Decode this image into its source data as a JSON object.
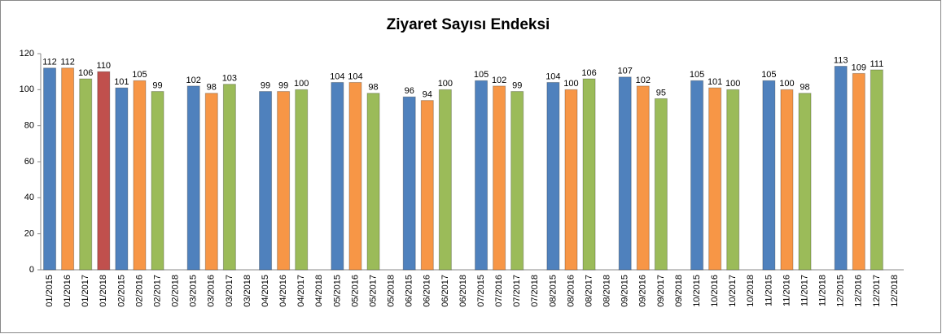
{
  "chart_data": {
    "type": "bar",
    "title": "Ziyaret Sayısı Endeksi",
    "categories": [
      "01/2015",
      "01/2016",
      "01/2017",
      "01/2018",
      "02/2015",
      "02/2016",
      "02/2017",
      "02/2018",
      "03/2015",
      "03/2016",
      "03/2017",
      "03/2018",
      "04/2015",
      "04/2016",
      "04/2017",
      "04/2018",
      "05/2015",
      "05/2016",
      "05/2017",
      "05/2018",
      "06/2015",
      "06/2016",
      "06/2017",
      "06/2018",
      "07/2015",
      "07/2016",
      "07/2017",
      "07/2018",
      "08/2015",
      "08/2016",
      "08/2017",
      "08/2018",
      "09/2015",
      "09/2016",
      "09/2017",
      "09/2018",
      "10/2015",
      "10/2016",
      "10/2017",
      "10/2018",
      "11/2015",
      "11/2016",
      "11/2017",
      "11/2018",
      "12/2015",
      "12/2016",
      "12/2017",
      "12/2018"
    ],
    "values": [
      112,
      112,
      106,
      110,
      101,
      105,
      99,
      null,
      102,
      98,
      103,
      null,
      99,
      99,
      100,
      null,
      104,
      104,
      98,
      null,
      96,
      94,
      100,
      null,
      105,
      102,
      99,
      null,
      104,
      100,
      106,
      null,
      107,
      102,
      95,
      null,
      105,
      101,
      100,
      null,
      105,
      100,
      98,
      null,
      113,
      109,
      111,
      null
    ],
    "palette": [
      "#4f81bd",
      "#f79646",
      "#9bbb59",
      "#c0504d"
    ],
    "ylim": [
      0,
      120
    ],
    "yticks": [
      0,
      20,
      40,
      60,
      80,
      100,
      120
    ],
    "grid": false
  }
}
